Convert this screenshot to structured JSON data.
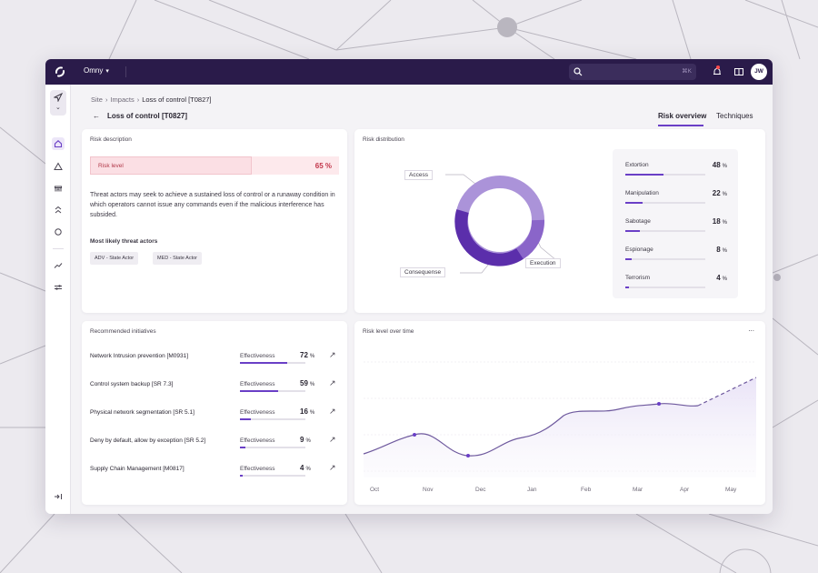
{
  "topbar": {
    "org": "Omny",
    "search_shortcut": "⌘K",
    "user_initials": "JW",
    "icons": [
      "logo-icon",
      "search-icon",
      "bell-icon",
      "book-icon"
    ]
  },
  "sidebar": {
    "icons": [
      "navigate-icon",
      "home-icon",
      "alert-triangle-icon",
      "store-icon",
      "hierarchy-icon",
      "circle-icon",
      "trend-icon",
      "sliders-icon",
      "collapse-icon"
    ],
    "active": "home-icon"
  },
  "breadcrumb": [
    "Site",
    "Impacts",
    "Loss of control [T0827]"
  ],
  "page": {
    "title": "Loss of control [T0827]",
    "tabs": [
      "Risk overview",
      "Techniques"
    ],
    "active_tab": "Risk overview"
  },
  "risk_description": {
    "title": "Risk description",
    "risk_label": "Risk level",
    "risk_value": "65 %",
    "risk_fraction": 0.65,
    "description": "Threat actors may seek to achieve a sustained loss of control or a runaway condition in which operators cannot issue any commands even if the malicious interference has subsided.",
    "actors_title": "Most likely threat actors",
    "actors": [
      "ADV - State Actor",
      "MED - State Actor"
    ]
  },
  "risk_distribution": {
    "title": "Risk distribution",
    "donut_labels": [
      "Access",
      "Execution",
      "Consequense"
    ],
    "items": [
      {
        "name": "Extortion",
        "value": "48",
        "unit": "%",
        "fraction": 0.48
      },
      {
        "name": "Manipulation",
        "value": "22",
        "unit": "%",
        "fraction": 0.22
      },
      {
        "name": "Sabotage",
        "value": "18",
        "unit": "%",
        "fraction": 0.18
      },
      {
        "name": "Espionage",
        "value": "8",
        "unit": "%",
        "fraction": 0.08
      },
      {
        "name": "Terrorism",
        "value": "4",
        "unit": "%",
        "fraction": 0.04
      }
    ]
  },
  "initiatives": {
    "title": "Recommended initiatives",
    "items": [
      {
        "name": "Network Intrusion prevention [M0931]",
        "label": "Effectiveness",
        "value": "72",
        "unit": "%",
        "fraction": 0.72
      },
      {
        "name": "Control system backup [SR 7.3]",
        "label": "Effectiveness",
        "value": "59",
        "unit": "%",
        "fraction": 0.59
      },
      {
        "name": "Physical network segmentation [SR 5.1]",
        "label": "Effectiveness",
        "value": "16",
        "unit": "%",
        "fraction": 0.16
      },
      {
        "name": "Deny by default, allow by exception [SR 5.2]",
        "label": "Effectiveness",
        "value": "9",
        "unit": "%",
        "fraction": 0.09
      },
      {
        "name": "Supply Chain Management [M0817]",
        "label": "Effectiveness",
        "value": "4",
        "unit": "%",
        "fraction": 0.04
      }
    ]
  },
  "risk_over_time": {
    "title": "Risk level over time",
    "more": "...",
    "months": [
      "Oct",
      "Nov",
      "Dec",
      "Jan",
      "Feb",
      "Mar",
      "Apr",
      "May"
    ]
  },
  "colors": {
    "accent": "#6a3fc6",
    "topbar": "#2a1b4a",
    "risk": "#c2364a"
  }
}
